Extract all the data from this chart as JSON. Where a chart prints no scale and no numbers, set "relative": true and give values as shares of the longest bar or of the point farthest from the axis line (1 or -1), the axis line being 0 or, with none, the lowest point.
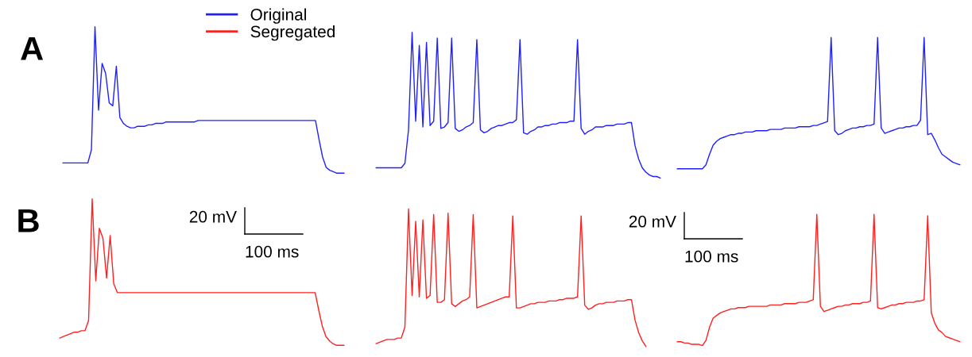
{
  "chart_data": [
    {
      "type": "line",
      "title": "A",
      "relative": true,
      "legend": "top",
      "categories": [
        null,
        null,
        null,
        null,
        null,
        null,
        null,
        null,
        null,
        null,
        null,
        null,
        null,
        null,
        null,
        null,
        null,
        null,
        null,
        null,
        null,
        null,
        null,
        null,
        null,
        null,
        null,
        null,
        null,
        null,
        null,
        null,
        null,
        null,
        null,
        null,
        null,
        null,
        null,
        null,
        null,
        null,
        null,
        null,
        null,
        null,
        null,
        null,
        null,
        null,
        null,
        null,
        null,
        null,
        null,
        null,
        null,
        null,
        null,
        null,
        null,
        null,
        null,
        null,
        null,
        null,
        null,
        null,
        null,
        null,
        null,
        null,
        null,
        null,
        null,
        null,
        null,
        null,
        null,
        null
      ],
      "series": [
        {
          "name": "Original",
          "color": "#2020ff",
          "values": [
            0.07,
            0.07,
            0.07,
            0.07,
            0.07,
            0.07,
            0.07,
            0.07,
            0.16,
            1.0,
            0.43,
            0.75,
            0.68,
            0.48,
            0.46,
            0.73,
            0.38,
            0.34,
            0.32,
            0.31,
            0.31,
            0.32,
            0.32,
            0.32,
            0.33,
            0.33,
            0.34,
            0.34,
            0.34,
            0.35,
            0.35,
            0.35,
            0.35,
            0.35,
            0.35,
            0.35,
            0.35,
            0.35,
            0.36,
            0.36,
            0.36,
            0.36,
            0.36,
            0.36,
            0.36,
            0.36,
            0.36,
            0.36,
            0.36,
            0.36,
            0.36,
            0.36,
            0.36,
            0.36,
            0.36,
            0.36,
            0.36,
            0.36,
            0.36,
            0.36,
            0.36,
            0.36,
            0.36,
            0.36,
            0.36,
            0.36,
            0.36,
            0.36,
            0.36,
            0.36,
            0.36,
            0.36,
            0.23,
            0.11,
            0.04,
            0.02,
            0.01,
            0,
            0,
            0
          ]
        }
      ]
    },
    {
      "type": "line",
      "relative": true,
      "categories": [
        null,
        null,
        null,
        null,
        null,
        null,
        null,
        null,
        null,
        null,
        null,
        null,
        null,
        null,
        null,
        null,
        null,
        null,
        null,
        null,
        null,
        null,
        null,
        null,
        null,
        null,
        null,
        null,
        null,
        null,
        null,
        null,
        null,
        null,
        null,
        null,
        null,
        null,
        null,
        null,
        null,
        null,
        null,
        null,
        null,
        null,
        null,
        null,
        null,
        null,
        null,
        null,
        null,
        null,
        null,
        null,
        null,
        null,
        null,
        null,
        null,
        null,
        null,
        null,
        null,
        null,
        null,
        null,
        null,
        null,
        null,
        null,
        null,
        null,
        null,
        null,
        null,
        null,
        null,
        null
      ],
      "series": [
        {
          "color": "#2020ff",
          "values": [
            0.07,
            0.07,
            0.07,
            0.07,
            0.07,
            0.07,
            0.07,
            0.07,
            0.1,
            0.33,
            1.0,
            0.39,
            0.91,
            0.35,
            0.93,
            0.36,
            0.39,
            0.96,
            0.34,
            0.35,
            0.38,
            0.96,
            0.34,
            0.32,
            0.33,
            0.35,
            0.36,
            0.38,
            0.95,
            0.33,
            0.31,
            0.32,
            0.34,
            0.35,
            0.36,
            0.36,
            0.37,
            0.38,
            0.38,
            0.4,
            0.95,
            0.31,
            0.3,
            0.32,
            0.33,
            0.35,
            0.35,
            0.36,
            0.36,
            0.37,
            0.37,
            0.38,
            0.38,
            0.38,
            0.39,
            0.39,
            0.95,
            0.34,
            0.3,
            0.32,
            0.33,
            0.35,
            0.35,
            0.35,
            0.36,
            0.36,
            0.36,
            0.37,
            0.37,
            0.37,
            0.38,
            0.38,
            0.22,
            0.13,
            0.07,
            0.04,
            0.02,
            0.01,
            0.01,
            0
          ]
        }
      ]
    },
    {
      "type": "line",
      "relative": true,
      "categories": [
        null,
        null,
        null,
        null,
        null,
        null,
        null,
        null,
        null,
        null,
        null,
        null,
        null,
        null,
        null,
        null,
        null,
        null,
        null,
        null,
        null,
        null,
        null,
        null,
        null,
        null,
        null,
        null,
        null,
        null,
        null,
        null,
        null,
        null,
        null,
        null,
        null,
        null,
        null,
        null,
        null,
        null,
        null,
        null,
        null,
        null,
        null,
        null,
        null,
        null,
        null,
        null,
        null,
        null,
        null,
        null,
        null,
        null,
        null,
        null,
        null,
        null,
        null,
        null,
        null,
        null,
        null,
        null,
        null,
        null,
        null,
        null,
        null,
        null,
        null,
        null,
        null,
        null,
        null,
        null
      ],
      "series": [
        {
          "color": "#2020ff",
          "values": [
            0,
            0,
            0,
            0,
            0,
            0,
            0,
            0,
            0.03,
            0.11,
            0.18,
            0.21,
            0.23,
            0.24,
            0.25,
            0.26,
            0.26,
            0.27,
            0.27,
            0.28,
            0.28,
            0.28,
            0.29,
            0.29,
            0.29,
            0.29,
            0.3,
            0.3,
            0.3,
            0.3,
            0.31,
            0.31,
            0.31,
            0.31,
            0.32,
            0.32,
            0.32,
            0.32,
            0.33,
            0.33,
            0.34,
            0.35,
            0.36,
            1.0,
            0.29,
            0.26,
            0.27,
            0.29,
            0.3,
            0.31,
            0.31,
            0.32,
            0.32,
            0.33,
            0.33,
            0.34,
            1.0,
            0.31,
            0.27,
            0.28,
            0.29,
            0.3,
            0.31,
            0.31,
            0.32,
            0.32,
            0.33,
            0.33,
            0.37,
            1.0,
            0.26,
            0.27,
            0.22,
            0.16,
            0.11,
            0.09,
            0.07,
            0.05,
            0.04,
            0.03
          ]
        }
      ]
    },
    {
      "type": "line",
      "title": "B",
      "relative": true,
      "legend": "top",
      "annotations": [
        "20 mV",
        "100 ms"
      ],
      "categories": [
        null,
        null,
        null,
        null,
        null,
        null,
        null,
        null,
        null,
        null,
        null,
        null,
        null,
        null,
        null,
        null,
        null,
        null,
        null,
        null,
        null,
        null,
        null,
        null,
        null,
        null,
        null,
        null,
        null,
        null,
        null,
        null,
        null,
        null,
        null,
        null,
        null,
        null,
        null,
        null,
        null,
        null,
        null,
        null,
        null,
        null,
        null,
        null,
        null,
        null,
        null,
        null,
        null,
        null,
        null,
        null,
        null,
        null,
        null,
        null,
        null,
        null,
        null,
        null,
        null,
        null,
        null,
        null,
        null,
        null,
        null,
        null,
        null,
        null,
        null,
        null,
        null,
        null,
        null,
        null
      ],
      "series": [
        {
          "name": "Segregated",
          "color": "#ff2020",
          "values": [
            0.05,
            0.06,
            0.07,
            0.08,
            0.09,
            0.09,
            0.1,
            0.1,
            0.17,
            1.0,
            0.44,
            0.8,
            0.73,
            0.46,
            0.75,
            0.42,
            0.36,
            0.36,
            0.36,
            0.36,
            0.36,
            0.36,
            0.36,
            0.36,
            0.36,
            0.36,
            0.36,
            0.36,
            0.36,
            0.36,
            0.36,
            0.36,
            0.36,
            0.36,
            0.36,
            0.36,
            0.36,
            0.36,
            0.36,
            0.36,
            0.36,
            0.36,
            0.36,
            0.36,
            0.36,
            0.36,
            0.36,
            0.36,
            0.36,
            0.36,
            0.36,
            0.36,
            0.36,
            0.36,
            0.36,
            0.36,
            0.36,
            0.36,
            0.36,
            0.36,
            0.36,
            0.36,
            0.36,
            0.36,
            0.36,
            0.36,
            0.36,
            0.36,
            0.36,
            0.36,
            0.36,
            0.36,
            0.24,
            0.13,
            0.06,
            0.03,
            0.01,
            0,
            0,
            0
          ]
        }
      ]
    },
    {
      "type": "line",
      "relative": true,
      "categories": [
        null,
        null,
        null,
        null,
        null,
        null,
        null,
        null,
        null,
        null,
        null,
        null,
        null,
        null,
        null,
        null,
        null,
        null,
        null,
        null,
        null,
        null,
        null,
        null,
        null,
        null,
        null,
        null,
        null,
        null,
        null,
        null,
        null,
        null,
        null,
        null,
        null,
        null,
        null,
        null,
        null,
        null,
        null,
        null,
        null,
        null,
        null,
        null,
        null,
        null,
        null,
        null,
        null,
        null,
        null,
        null,
        null,
        null,
        null,
        null,
        null,
        null,
        null,
        null,
        null,
        null,
        null,
        null,
        null,
        null,
        null,
        null,
        null,
        null,
        null,
        null,
        null,
        null,
        null,
        null
      ],
      "series": [
        {
          "color": "#ff2020",
          "values": [
            0.02,
            0.03,
            0.04,
            0.05,
            0.05,
            0.05,
            0.06,
            0.06,
            0.14,
            1.0,
            0.37,
            0.91,
            0.36,
            0.92,
            0.35,
            0.37,
            0.96,
            0.32,
            0.32,
            0.34,
            0.97,
            0.31,
            0.29,
            0.31,
            0.33,
            0.34,
            0.36,
            0.96,
            0.28,
            0.29,
            0.3,
            0.31,
            0.32,
            0.33,
            0.34,
            0.35,
            0.36,
            0.36,
            0.95,
            0.28,
            0.28,
            0.29,
            0.3,
            0.31,
            0.31,
            0.32,
            0.32,
            0.32,
            0.33,
            0.33,
            0.33,
            0.34,
            0.34,
            0.35,
            0.35,
            0.35,
            0.36,
            0.95,
            0.3,
            0.27,
            0.28,
            0.3,
            0.31,
            0.31,
            0.32,
            0.32,
            0.32,
            0.33,
            0.33,
            0.33,
            0.34,
            0.34,
            0.19,
            0.1,
            0.04,
            0,
            null,
            null,
            null,
            null
          ]
        }
      ]
    },
    {
      "type": "line",
      "relative": true,
      "annotations": [
        "20 mV",
        "100 ms"
      ],
      "categories": [
        null,
        null,
        null,
        null,
        null,
        null,
        null,
        null,
        null,
        null,
        null,
        null,
        null,
        null,
        null,
        null,
        null,
        null,
        null,
        null,
        null,
        null,
        null,
        null,
        null,
        null,
        null,
        null,
        null,
        null,
        null,
        null,
        null,
        null,
        null,
        null,
        null,
        null,
        null,
        null,
        null,
        null,
        null,
        null,
        null,
        null,
        null,
        null,
        null,
        null,
        null,
        null,
        null,
        null,
        null,
        null,
        null,
        null,
        null,
        null,
        null,
        null,
        null,
        null,
        null,
        null,
        null,
        null,
        null,
        null,
        null,
        null,
        null,
        null,
        null,
        null,
        null,
        null,
        null,
        null
      ],
      "series": [
        {
          "color": "#ff2020",
          "values": [
            0.03,
            0.03,
            0.02,
            0.02,
            0.01,
            0.01,
            0.01,
            0,
            0.04,
            0.14,
            0.21,
            0.23,
            0.25,
            0.26,
            0.27,
            0.28,
            0.28,
            0.29,
            0.29,
            0.29,
            0.3,
            0.3,
            0.3,
            0.3,
            0.3,
            0.3,
            0.31,
            0.31,
            0.31,
            0.31,
            0.32,
            0.32,
            0.32,
            0.32,
            0.33,
            0.33,
            0.33,
            0.34,
            0.35,
            1.0,
            0.3,
            0.26,
            0.27,
            0.28,
            0.29,
            0.3,
            0.3,
            0.31,
            0.31,
            0.32,
            0.32,
            0.32,
            0.33,
            0.33,
            0.34,
            1.0,
            0.29,
            0.28,
            0.29,
            0.3,
            0.31,
            0.31,
            0.32,
            0.32,
            0.33,
            0.33,
            0.33,
            0.34,
            0.34,
            0.35,
            0.99,
            0.25,
            0.17,
            0.12,
            0.1,
            0.07,
            0.06,
            0.05,
            0.04,
            0.03
          ]
        }
      ]
    }
  ]
}
